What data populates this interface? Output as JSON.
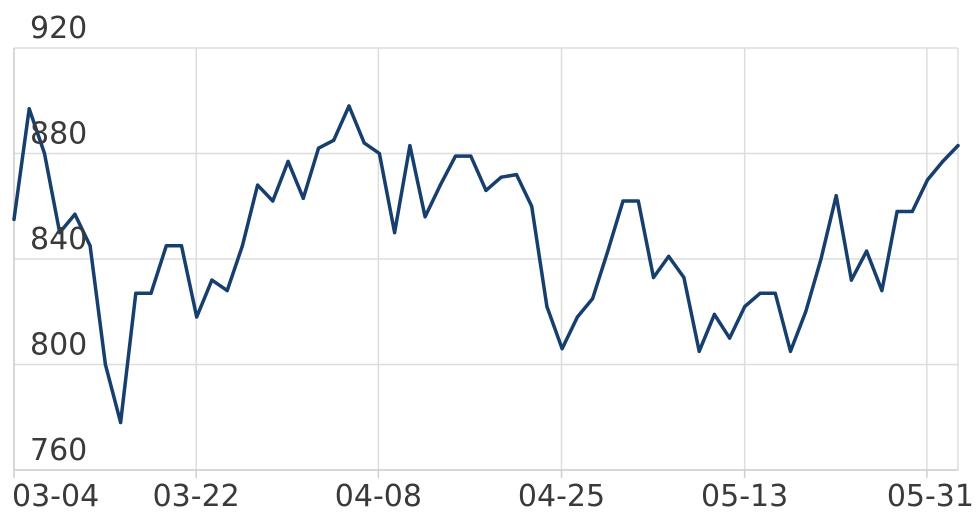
{
  "chart_data": {
    "type": "line",
    "title": "",
    "xlabel": "",
    "ylabel": "",
    "ylim": [
      760,
      920
    ],
    "y_ticks": [
      760,
      800,
      840,
      880,
      920
    ],
    "y_tick_labels": [
      "760",
      "800",
      "840",
      "880",
      "920"
    ],
    "x_tick_labels": [
      "03-04",
      "03-22",
      "04-08",
      "04-25",
      "05-13",
      "05-31"
    ],
    "grid": true,
    "legend": "none",
    "colors": {
      "line": "#173f6e",
      "grid": "#dddddd",
      "axis": "#cfcfcf",
      "text": "#3a3a3a"
    },
    "series": [
      {
        "values": [
          855,
          897,
          880,
          850,
          857,
          845,
          800,
          778,
          827,
          827,
          845,
          845,
          818,
          832,
          828,
          845,
          868,
          862,
          877,
          863,
          882,
          885,
          898,
          884,
          880,
          850,
          883,
          856,
          868,
          879,
          879,
          866,
          871,
          872,
          860,
          822,
          806,
          818,
          825,
          843,
          862,
          862,
          833,
          841,
          833,
          805,
          819,
          810,
          822,
          827,
          827,
          805,
          820,
          840,
          864,
          832,
          843,
          828,
          858,
          858,
          870,
          877,
          883
        ]
      }
    ]
  }
}
